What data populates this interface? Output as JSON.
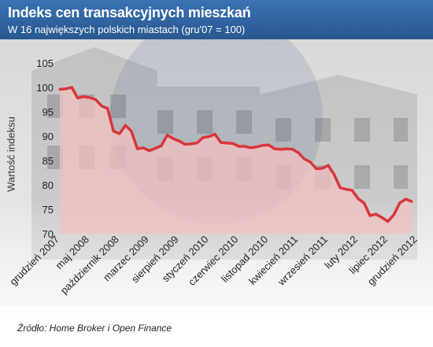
{
  "header": {
    "title": "Indeks cen transakcyjnych mieszkań",
    "subtitle": "W 16 największych polskich miastach (gru'07 = 100)"
  },
  "footer": {
    "source": "Źródło: Home Broker i Open Finance"
  },
  "colors": {
    "header": "#2f65a3",
    "line": "#d9373a",
    "area": "#f2c0c2",
    "text": "#222222"
  },
  "chart_data": {
    "type": "area",
    "ylabel": "Wartość indeksu",
    "xlabel": "",
    "ylim": [
      70,
      105
    ],
    "yticks": [
      70,
      75,
      80,
      85,
      90,
      95,
      100,
      105
    ],
    "x_tick_labels": [
      "grudzień 2007",
      "maj 2008",
      "październik 2008",
      "marzec 2009",
      "sierpień 2009",
      "styczeń 2010",
      "czerwiec 2010",
      "listopad 2010",
      "kwiecień 2011",
      "wrzesień 2011",
      "luty 2012",
      "lipiec 2012",
      "grudzień 2012"
    ],
    "x_tick_every": 5,
    "grid": false,
    "series": [
      {
        "values": [
          99.6,
          99.7,
          100.0,
          97.8,
          98.1,
          97.9,
          97.5,
          96.2,
          95.7,
          91.0,
          90.5,
          92.2,
          91.0,
          87.4,
          87.6,
          87.0,
          87.5,
          88.0,
          90.2,
          89.5,
          89.0,
          88.3,
          88.4,
          88.6,
          89.7,
          89.9,
          90.4,
          88.7,
          88.6,
          88.5,
          87.9,
          87.9,
          87.6,
          87.8,
          88.1,
          88.2,
          87.4,
          87.3,
          87.4,
          87.3,
          86.6,
          85.3,
          84.7,
          83.3,
          83.4,
          84.0,
          82.1,
          79.4,
          79.1,
          78.9,
          77.2,
          76.3,
          73.7,
          74.0,
          73.3,
          72.5,
          73.9,
          76.3,
          77.1,
          76.6
        ]
      }
    ]
  }
}
